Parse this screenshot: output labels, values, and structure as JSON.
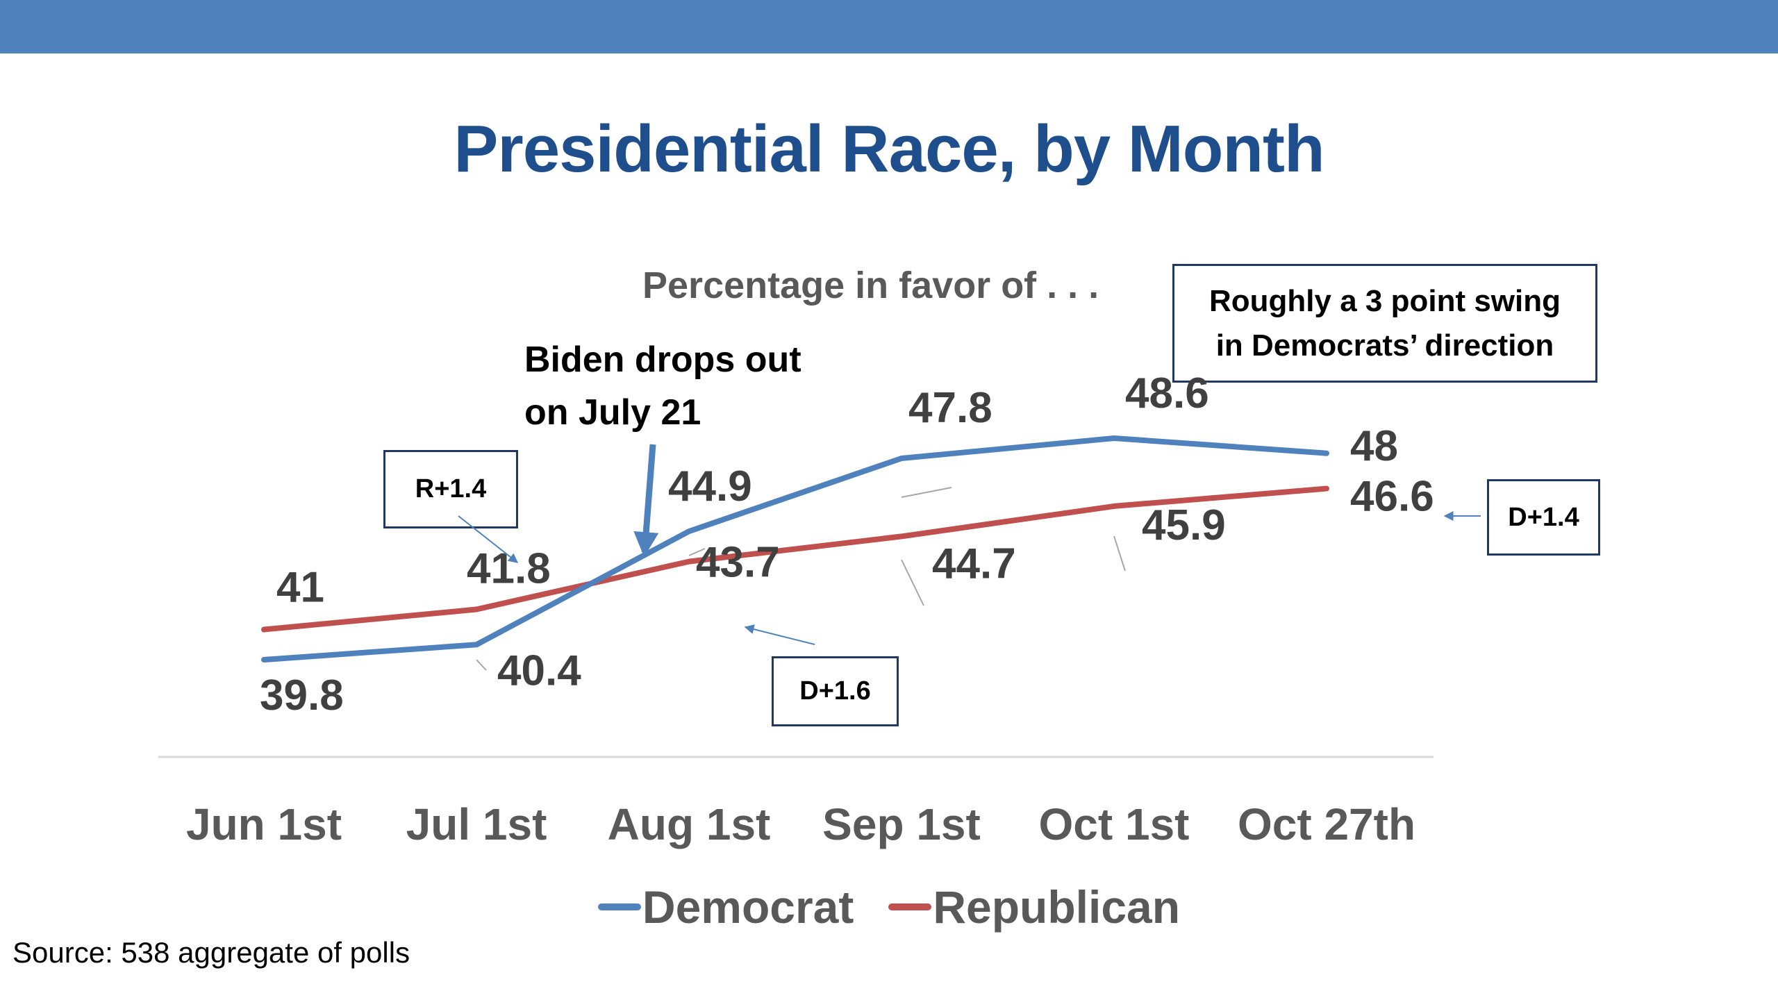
{
  "colors": {
    "top_bar": "#4f81bd",
    "title": "#1f4e8c",
    "democrat": "#4f81bd",
    "republican": "#c0504d",
    "box_border": "#1f3864",
    "text_gray": "#595959"
  },
  "title": "Presidential Race, by Month",
  "subtitle": "Percentage in favor of . . .",
  "annotations": {
    "biden_line1": "Biden drops out",
    "biden_line2": "on July 21",
    "swing_line1": "Roughly a 3 point swing",
    "swing_line2": "in Democrats’ direction",
    "box_r": "R+1.4",
    "box_d1": "D+1.6",
    "box_d2": "D+1.4"
  },
  "source": "Source: 538 aggregate of polls",
  "chart_data": {
    "type": "line",
    "categories": [
      "Jun 1st",
      "Jul 1st",
      "Aug 1st",
      "Sep 1st",
      "Oct 1st",
      "Oct 27th"
    ],
    "series": [
      {
        "name": "Democrat",
        "values": [
          39.8,
          40.4,
          44.9,
          47.8,
          48.6,
          48
        ],
        "labels": [
          "39.8",
          "40.4",
          "44.9",
          "47.8",
          "48.6",
          "48"
        ]
      },
      {
        "name": "Republican",
        "values": [
          41,
          41.8,
          43.7,
          44.7,
          45.9,
          46.6
        ],
        "labels": [
          "41",
          "41.8",
          "43.7",
          "44.7",
          "45.9",
          "46.6"
        ]
      }
    ],
    "grid": false,
    "legend": "bottom"
  }
}
